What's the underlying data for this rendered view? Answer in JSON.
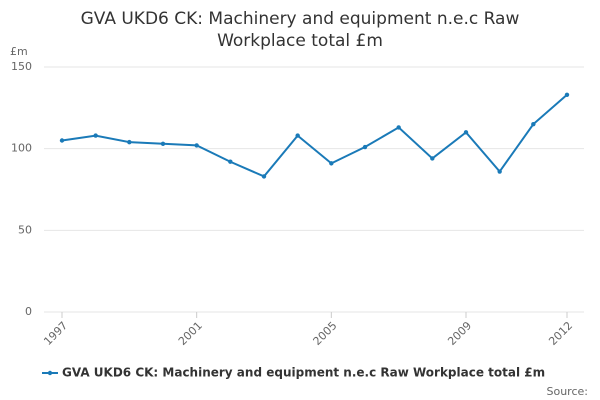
{
  "chart_data": {
    "type": "line",
    "title": "GVA UKD6 CK: Machinery and equipment n.e.c Raw Workplace total £m",
    "y_label": "£m",
    "source": "Source:",
    "x": [
      1997,
      1998,
      1999,
      2000,
      2001,
      2002,
      2003,
      2004,
      2005,
      2006,
      2007,
      2008,
      2009,
      2010,
      2011,
      2012
    ],
    "series": [
      {
        "name": "GVA UKD6 CK: Machinery and equipment n.e.c Raw Workplace total £m",
        "color": "#1a7ab8",
        "values": [
          105,
          108,
          104,
          103,
          102,
          92,
          83,
          108,
          91,
          101,
          113,
          94,
          110,
          86,
          115,
          133
        ]
      }
    ],
    "xlim": [
      1997,
      2012
    ],
    "xticks": [
      1997,
      2001,
      2005,
      2009,
      2012
    ],
    "ylim": [
      0,
      150
    ],
    "yticks": [
      0,
      50,
      100,
      150
    ],
    "grid": true
  }
}
